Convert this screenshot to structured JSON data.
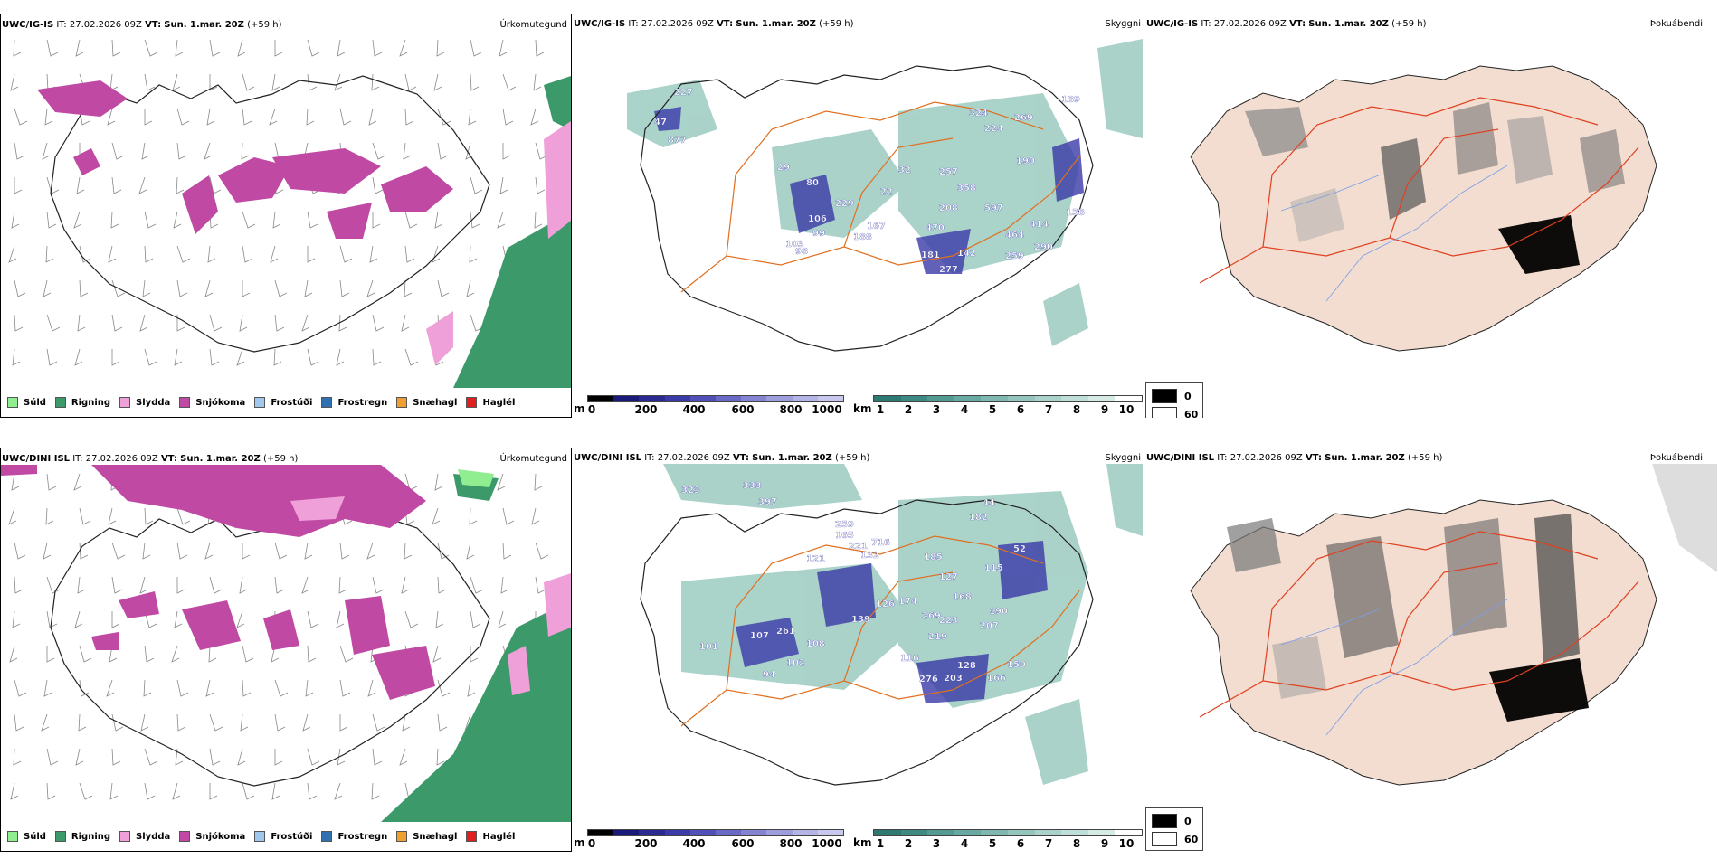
{
  "colors": {
    "drizzle": "#90ee90",
    "rain": "#3c9a6a",
    "sleet": "#f0a0d8",
    "snow": "#c049a4",
    "freezing_drizzle": "#a0c8ee",
    "freezing_rain": "#3070b0",
    "snow_grains": "#f0a030",
    "hail": "#e02020",
    "roads": "#e07020",
    "coast": "#000000",
    "visibility_high": "#b8dcd4",
    "visibility_low": "#2e7a72",
    "ceiling_low": "#1a1a7a",
    "ceiling_high": "#c8c8ee",
    "land_fog": "#f2ddd0",
    "fog_dark": "#000000"
  },
  "rows": [
    {
      "model": "UWC/IG-IS",
      "it_label": "IT:",
      "it_value": "27.02.2026 09Z",
      "vt_label": "VT:",
      "vt_value": "Sun. 1.mar. 20Z",
      "lead": "(+59 h)",
      "precip": {
        "title": "Úrkomutegund",
        "legend": [
          {
            "label": "Súld",
            "color": "#90ee90"
          },
          {
            "label": "Rigning",
            "color": "#3c9a6a"
          },
          {
            "label": "Slydda",
            "color": "#f0a0d8"
          },
          {
            "label": "Snjókoma",
            "color": "#c049a4"
          },
          {
            "label": "Frostúði",
            "color": "#a0c8ee"
          },
          {
            "label": "Frostregn",
            "color": "#3070b0"
          },
          {
            "label": "Snæhagl",
            "color": "#f0a030"
          },
          {
            "label": "Haglél",
            "color": "#e02020"
          }
        ]
      },
      "vis": {
        "title": "Skyggni",
        "ceiling_unit": "m",
        "ceiling_ticks": [
          "0",
          "200",
          "400",
          "600",
          "800",
          "1000"
        ],
        "vis_unit": "km",
        "vis_ticks": [
          "1",
          "2",
          "3",
          "4",
          "5",
          "6",
          "7",
          "8",
          "9",
          "10"
        ],
        "labels": [
          "227",
          "47",
          "877",
          "29",
          "80",
          "106",
          "99",
          "98",
          "103",
          "188",
          "167",
          "229",
          "22",
          "32",
          "257",
          "358",
          "208",
          "470",
          "181",
          "142",
          "277",
          "190",
          "158",
          "597",
          "414",
          "290",
          "259",
          "464",
          "324",
          "224",
          "189",
          "269"
        ]
      },
      "fog": {
        "title": "Þokuábendi",
        "legend_dark": "0",
        "legend_light": "60"
      }
    },
    {
      "model": "UWC/DINI ISL",
      "it_label": "IT:",
      "it_value": "27.02.2026 09Z",
      "vt_label": "VT:",
      "vt_value": "Sun. 1.mar. 20Z",
      "lead": "(+59 h)",
      "precip": {
        "title": "Úrkomutegund",
        "legend": [
          {
            "label": "Súld",
            "color": "#90ee90"
          },
          {
            "label": "Rigning",
            "color": "#3c9a6a"
          },
          {
            "label": "Slydda",
            "color": "#f0a0d8"
          },
          {
            "label": "Snjókoma",
            "color": "#c049a4"
          },
          {
            "label": "Frostúði",
            "color": "#a0c8ee"
          },
          {
            "label": "Frostregn",
            "color": "#3070b0"
          },
          {
            "label": "Snæhagl",
            "color": "#f0a030"
          },
          {
            "label": "Haglél",
            "color": "#e02020"
          }
        ]
      },
      "vis": {
        "title": "Skyggni",
        "ceiling_unit": "m",
        "ceiling_ticks": [
          "0",
          "200",
          "400",
          "600",
          "800",
          "1000"
        ],
        "vis_unit": "km",
        "vis_ticks": [
          "1",
          "2",
          "3",
          "4",
          "5",
          "6",
          "7",
          "8",
          "9",
          "10"
        ],
        "labels": [
          "323",
          "333",
          "397",
          "259",
          "165",
          "221",
          "716",
          "132",
          "121",
          "126",
          "174",
          "139",
          "107",
          "261",
          "108",
          "101",
          "102",
          "94",
          "116",
          "269",
          "223",
          "219",
          "276",
          "203",
          "128",
          "166",
          "150",
          "207",
          "190",
          "185",
          "115",
          "182",
          "44",
          "52",
          "127",
          "168"
        ]
      },
      "fog": {
        "title": "Þokuábendi",
        "legend_dark": "0",
        "legend_light": "60"
      }
    }
  ]
}
